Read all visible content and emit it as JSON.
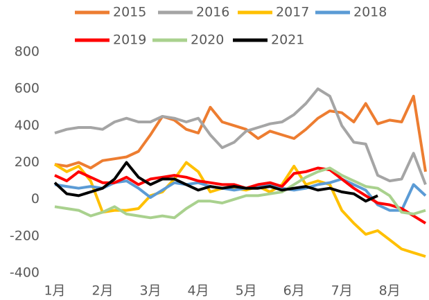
{
  "chart_data": {
    "type": "line",
    "x": [
      1,
      1.25,
      1.5,
      1.75,
      2,
      2.25,
      2.5,
      2.75,
      3,
      3.25,
      3.5,
      3.75,
      4,
      4.25,
      4.5,
      4.75,
      5,
      5.25,
      5.5,
      5.75,
      6,
      6.25,
      6.5,
      6.75,
      7,
      7.25,
      7.5,
      7.75,
      8,
      8.25,
      8.5,
      8.75
    ],
    "xlim": [
      1,
      8.75
    ],
    "xticks": [
      {
        "value": 1,
        "label": "1月"
      },
      {
        "value": 2,
        "label": "2月"
      },
      {
        "value": 3,
        "label": "3月"
      },
      {
        "value": 4,
        "label": "4月"
      },
      {
        "value": 5,
        "label": "5月"
      },
      {
        "value": 6,
        "label": "6月"
      },
      {
        "value": 7,
        "label": "7月"
      },
      {
        "value": 8,
        "label": "8月"
      }
    ],
    "ylim": [
      -400,
      800
    ],
    "yticks": [
      -400,
      -200,
      0,
      200,
      400,
      600,
      800
    ],
    "grid": false,
    "legend": "top",
    "series": [
      {
        "name": "2015",
        "color": "#ed7d31",
        "values": [
          190,
          180,
          200,
          170,
          210,
          220,
          230,
          260,
          350,
          450,
          430,
          380,
          360,
          500,
          420,
          400,
          380,
          330,
          370,
          350,
          330,
          380,
          440,
          480,
          470,
          420,
          520,
          410,
          430,
          420,
          560,
          150
        ]
      },
      {
        "name": "2016",
        "color": "#a5a5a5",
        "values": [
          360,
          380,
          390,
          390,
          380,
          420,
          440,
          420,
          420,
          450,
          440,
          420,
          440,
          350,
          280,
          310,
          370,
          390,
          410,
          420,
          460,
          520,
          600,
          560,
          400,
          310,
          300,
          130,
          100,
          110,
          250,
          80
        ]
      },
      {
        "name": "2017",
        "color": "#ffc000",
        "values": [
          190,
          150,
          180,
          100,
          -70,
          -60,
          -60,
          -50,
          20,
          40,
          110,
          200,
          150,
          40,
          60,
          60,
          50,
          70,
          40,
          80,
          180,
          80,
          100,
          80,
          -60,
          -130,
          -190,
          -170,
          -220,
          -270,
          -290,
          -310
        ]
      },
      {
        "name": "2018",
        "color": "#5b9bd5",
        "values": [
          80,
          70,
          60,
          70,
          60,
          90,
          100,
          60,
          10,
          50,
          90,
          80,
          90,
          70,
          60,
          50,
          60,
          70,
          80,
          60,
          50,
          60,
          80,
          90,
          110,
          80,
          50,
          -30,
          -60,
          -60,
          80,
          20
        ]
      },
      {
        "name": "2019",
        "color": "#ff0000",
        "values": [
          130,
          100,
          150,
          120,
          90,
          90,
          120,
          80,
          110,
          120,
          130,
          120,
          100,
          90,
          80,
          80,
          60,
          80,
          90,
          70,
          140,
          150,
          170,
          160,
          110,
          60,
          20,
          -20,
          -30,
          -50,
          -90,
          -130
        ]
      },
      {
        "name": "2020",
        "color": "#a9d18e",
        "values": [
          -40,
          -50,
          -60,
          -90,
          -70,
          -40,
          -80,
          -90,
          -100,
          -90,
          -100,
          -50,
          -10,
          -10,
          -20,
          0,
          20,
          20,
          30,
          40,
          80,
          120,
          150,
          170,
          130,
          100,
          70,
          60,
          20,
          -70,
          -80,
          -60
        ]
      },
      {
        "name": "2021",
        "color": "#000000",
        "values": [
          90,
          30,
          20,
          40,
          60,
          110,
          200,
          120,
          80,
          110,
          110,
          80,
          50,
          70,
          60,
          70,
          60,
          60,
          70,
          50,
          60,
          70,
          50,
          60,
          40,
          30,
          -10,
          20,
          null,
          null,
          null,
          null
        ]
      }
    ]
  }
}
